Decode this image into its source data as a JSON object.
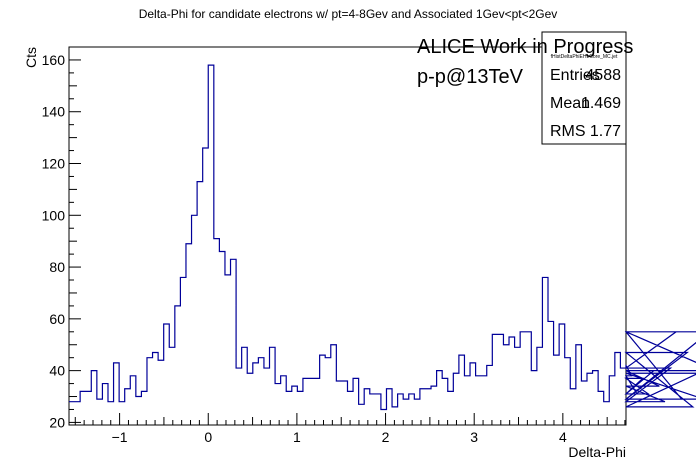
{
  "chart_data": {
    "type": "histogram",
    "title": "Delta-Phi for candidate electrons w/ pt=4-8Gev and Associated 1Gev<pt<2Gev",
    "xlabel": "Delta-Phi",
    "ylabel": "Cts",
    "xlim": [
      -1.5708,
      4.7124
    ],
    "ylim": [
      19,
      165
    ],
    "xticks": [
      -1,
      0,
      1,
      2,
      3,
      4
    ],
    "yticks": [
      20,
      40,
      60,
      80,
      100,
      120,
      140,
      160
    ],
    "bin_edges_start": -1.5708,
    "bin_width": 0.06283,
    "values": [
      28,
      28,
      32,
      32,
      40,
      29,
      35,
      28,
      43,
      28,
      33,
      38,
      30,
      32,
      45,
      47,
      44,
      58,
      49,
      65,
      76,
      89,
      100,
      113,
      126,
      158,
      91,
      86,
      77,
      83,
      41,
      49,
      39,
      43,
      45,
      41,
      49,
      35,
      38,
      32,
      34,
      32,
      37,
      37,
      37,
      46,
      45,
      50,
      36,
      36,
      32,
      37,
      27,
      33,
      31,
      31,
      25,
      33,
      26,
      31,
      29,
      31,
      29,
      33,
      33,
      34,
      40,
      37,
      32,
      39,
      46,
      38,
      43,
      38,
      38,
      42,
      54,
      54,
      50,
      53,
      49,
      55,
      55,
      40,
      49,
      76,
      59,
      46,
      58,
      45,
      33,
      50,
      36,
      39,
      40,
      32,
      28,
      38,
      47,
      41,
      42,
      38,
      31,
      37,
      31,
      40,
      34,
      28,
      41,
      55,
      29,
      47,
      26,
      39,
      29,
      55,
      40
    ],
    "line_color": "#000099",
    "grid": false,
    "stats": {
      "name": "fHistDeltaPhiEHLCore_MC.jet",
      "rows": [
        {
          "label": "Entries",
          "value": "4588"
        },
        {
          "label": "Mean",
          "value": "1.469"
        },
        {
          "label": "RMS",
          "value": "1.77"
        }
      ]
    },
    "annotations": [
      "ALICE Work in Progress",
      "p-p@13TeV"
    ]
  }
}
